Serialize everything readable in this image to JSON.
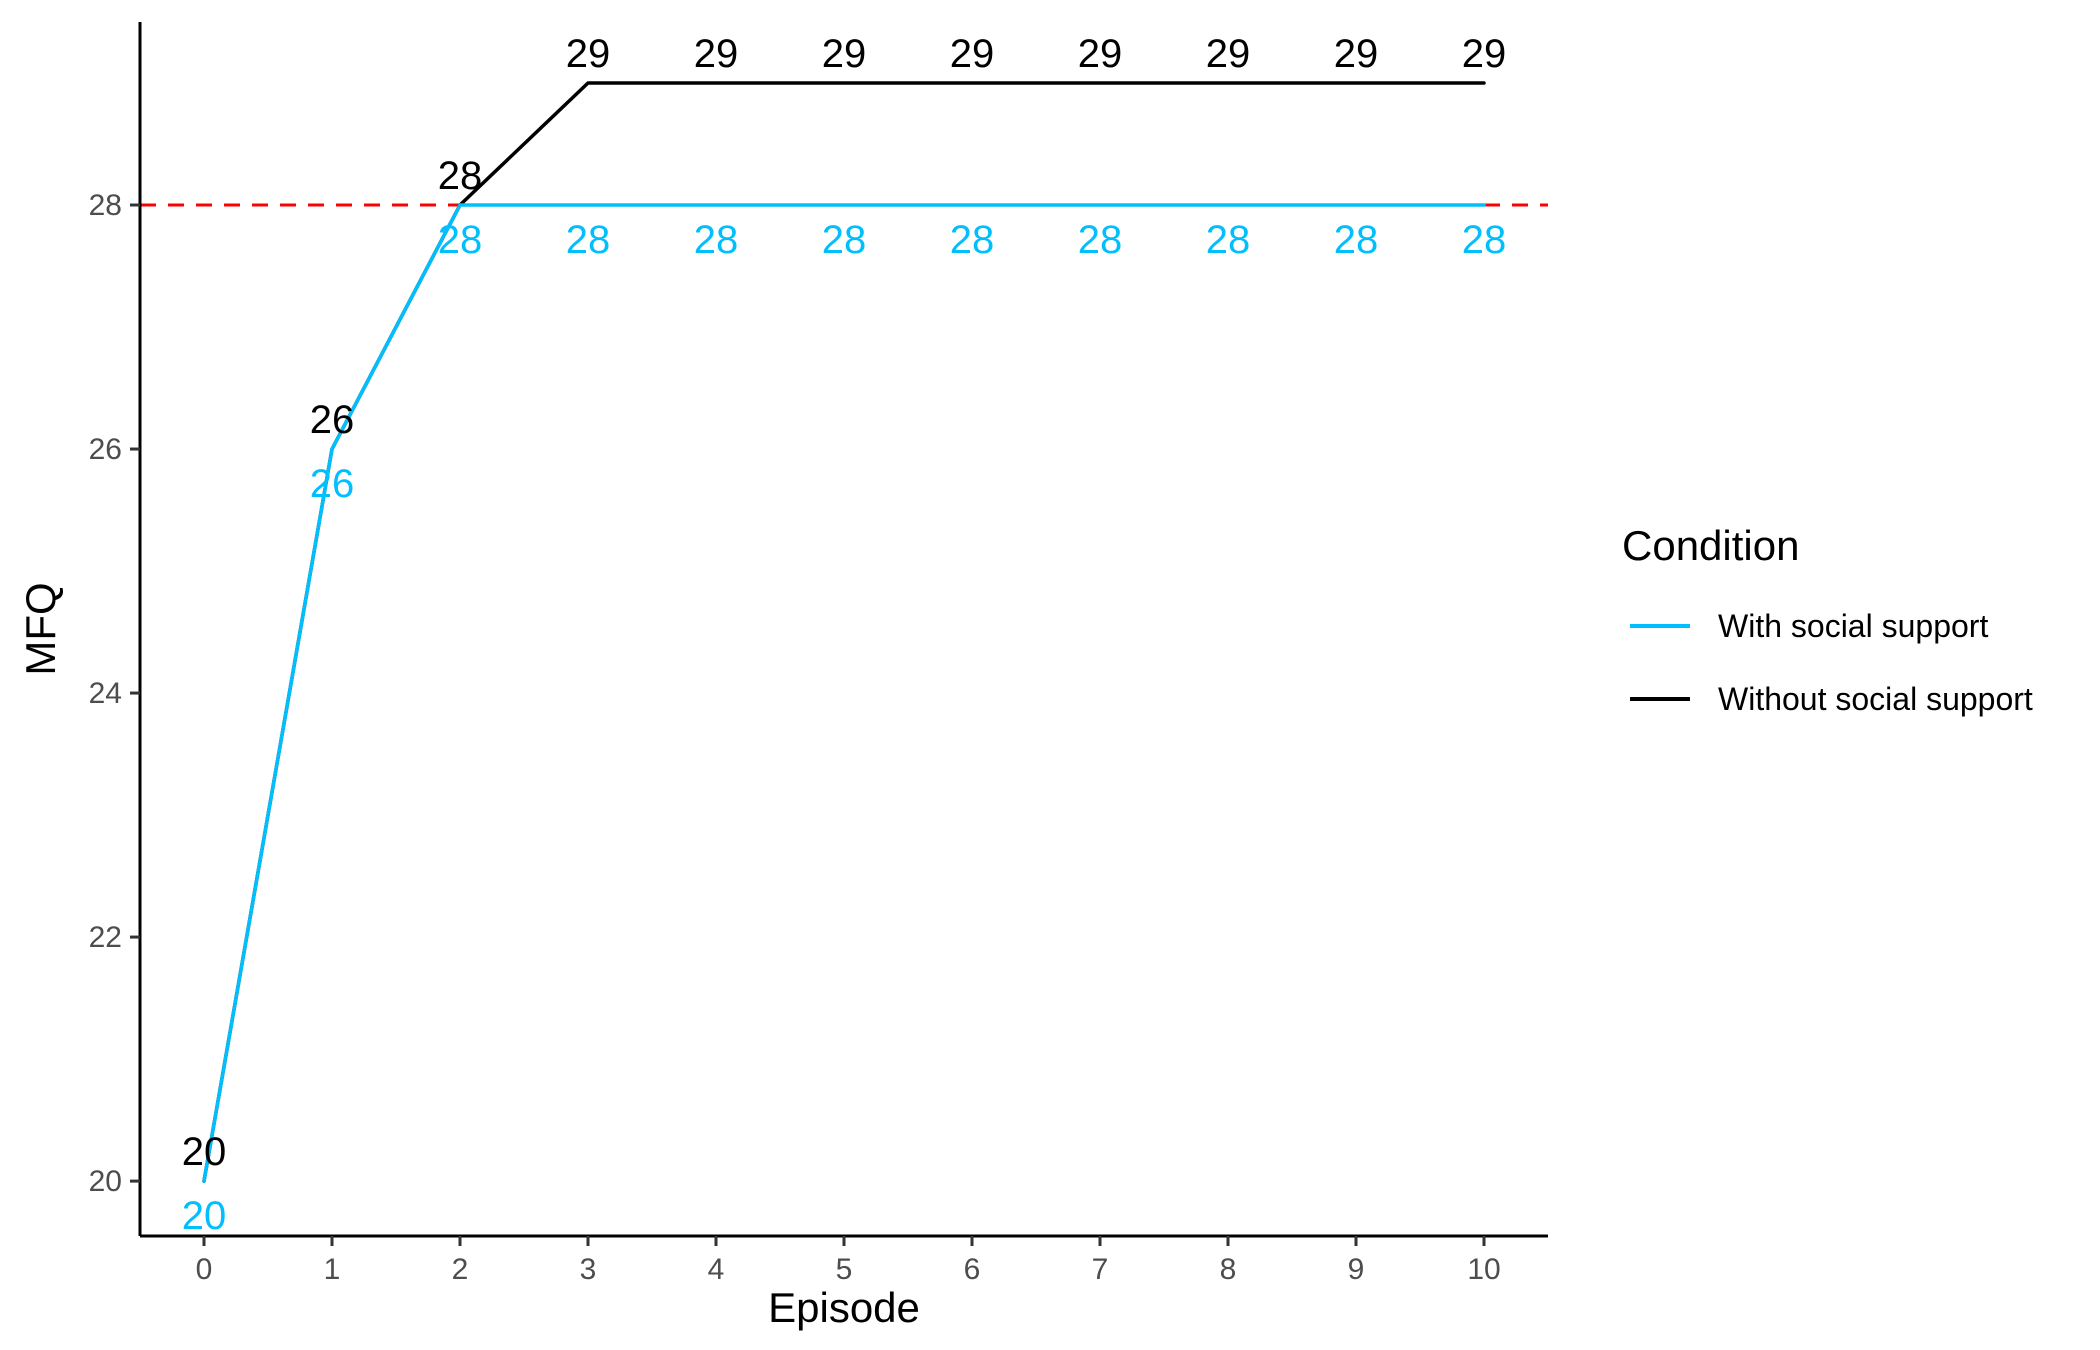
{
  "chart_data": {
    "type": "line",
    "xlabel": "Episode",
    "ylabel": "MFQ",
    "x": [
      0,
      1,
      2,
      3,
      4,
      5,
      6,
      7,
      8,
      9,
      10
    ],
    "xlim": [
      -0.5,
      10.5
    ],
    "ylim": [
      19.55,
      29.5
    ],
    "x_ticks": [
      "0",
      "1",
      "2",
      "3",
      "4",
      "5",
      "6",
      "7",
      "8",
      "9",
      "10"
    ],
    "y_ticks": [
      20,
      22,
      24,
      26,
      28
    ],
    "grid": false,
    "reference_line": {
      "y": 28,
      "color": "#FF0000",
      "style": "dashed"
    },
    "legend": {
      "title": "Condition",
      "placement": "right"
    },
    "series": [
      {
        "name": "With social support",
        "color": "#00BFFF",
        "values": [
          20,
          26,
          28,
          28,
          28,
          28,
          28,
          28,
          28,
          28,
          28
        ],
        "labels": [
          "20",
          "26",
          "28",
          "28",
          "28",
          "28",
          "28",
          "28",
          "28",
          "28",
          "28"
        ],
        "label_position": "below"
      },
      {
        "name": "Without social support",
        "color": "#000000",
        "values": [
          20,
          26,
          28,
          29,
          29,
          29,
          29,
          29,
          29,
          29,
          29
        ],
        "labels": [
          "20",
          "26",
          "28",
          "29",
          "29",
          "29",
          "29",
          "29",
          "29",
          "29",
          "29"
        ],
        "label_position": "above"
      }
    ]
  }
}
